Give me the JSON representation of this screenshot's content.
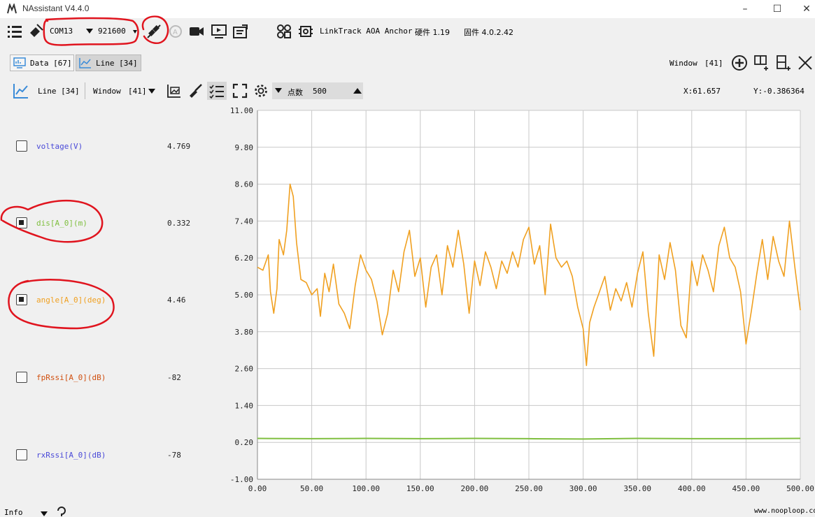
{
  "window": {
    "title": "NAssistant V4.4.0"
  },
  "toolbar": {
    "port": "COM13",
    "baud": "921600",
    "device_info": "LinkTrack AOA Anchor",
    "hardware": "硬件 1.19",
    "firmware": "固件 4.0.2.42"
  },
  "tabs": [
    {
      "label": "Data [67]"
    },
    {
      "label": "Line [34]"
    }
  ],
  "right_controls": {
    "window_label": "Window",
    "window_value": "[41]"
  },
  "line_toolbar": {
    "line_label": "Line [34]",
    "window_label": "Window",
    "window_value": "[41]",
    "points_label": "点数",
    "points_value": "500",
    "x_readout": "X:61.657",
    "y_readout": "Y:-0.386364"
  },
  "series": [
    {
      "name": "voltage(V)",
      "value": "4.769",
      "checked": false,
      "color": "#4a4ad8"
    },
    {
      "name": "dis[A_0](m)",
      "value": "0.332",
      "checked": true,
      "color": "#7fbf3f"
    },
    {
      "name": "angle[A_0](deg)",
      "value": "4.46",
      "checked": true,
      "color": "#f0a020"
    },
    {
      "name": "fpRssi[A_0](dB)",
      "value": "-82",
      "checked": false,
      "color": "#d05010"
    },
    {
      "name": "rxRssi[A_0](dB)",
      "value": "-78",
      "checked": false,
      "color": "#4a4ad8"
    }
  ],
  "statusbar": {
    "level": "Info",
    "website": "www.nooploop.com"
  },
  "chart_data": {
    "type": "line",
    "ylim": [
      -1.0,
      11.0
    ],
    "xlim": [
      0,
      500
    ],
    "yticks": [
      "11.00",
      "9.80",
      "8.60",
      "7.40",
      "6.20",
      "5.00",
      "3.80",
      "2.60",
      "1.40",
      "0.20",
      "-1.00"
    ],
    "xticks": [
      "0.00",
      "50.00",
      "100.00",
      "150.00",
      "200.00",
      "250.00",
      "300.00",
      "350.00",
      "400.00",
      "450.00",
      "500.00"
    ],
    "grid": true,
    "series": [
      {
        "name": "angle[A_0](deg)",
        "color": "#f0a020",
        "x": [
          0,
          5,
          10,
          12,
          15,
          18,
          20,
          24,
          27,
          30,
          33,
          36,
          40,
          45,
          50,
          55,
          58,
          62,
          66,
          70,
          75,
          80,
          85,
          90,
          95,
          100,
          105,
          110,
          115,
          120,
          125,
          130,
          135,
          140,
          145,
          150,
          155,
          160,
          165,
          170,
          175,
          180,
          185,
          190,
          195,
          200,
          205,
          210,
          215,
          220,
          225,
          230,
          235,
          240,
          245,
          250,
          255,
          260,
          265,
          270,
          275,
          280,
          285,
          290,
          295,
          300,
          303,
          306,
          310,
          315,
          320,
          325,
          330,
          335,
          340,
          345,
          350,
          355,
          360,
          365,
          370,
          375,
          380,
          385,
          390,
          395,
          400,
          405,
          410,
          415,
          420,
          425,
          430,
          435,
          440,
          445,
          450,
          455,
          460,
          465,
          470,
          475,
          480,
          485,
          490,
          495,
          500
        ],
        "values": [
          5.9,
          5.8,
          6.3,
          5.1,
          4.4,
          5.2,
          6.8,
          6.3,
          7.1,
          8.6,
          8.2,
          6.7,
          5.5,
          5.4,
          5.0,
          5.2,
          4.3,
          5.7,
          5.1,
          6.0,
          4.7,
          4.4,
          3.9,
          5.3,
          6.3,
          5.8,
          5.5,
          4.8,
          3.7,
          4.4,
          5.8,
          5.1,
          6.4,
          7.1,
          5.6,
          6.2,
          4.6,
          5.9,
          6.3,
          5.0,
          6.6,
          5.9,
          7.1,
          6.0,
          4.4,
          6.1,
          5.3,
          6.4,
          5.9,
          5.2,
          6.1,
          5.7,
          6.4,
          5.9,
          6.8,
          7.2,
          6.0,
          6.6,
          5.0,
          7.3,
          6.2,
          5.9,
          6.1,
          5.6,
          4.6,
          3.9,
          2.7,
          4.1,
          4.6,
          5.1,
          5.6,
          4.5,
          5.2,
          4.8,
          5.4,
          4.6,
          5.7,
          6.4,
          4.4,
          3.0,
          6.3,
          5.5,
          6.7,
          5.8,
          4.0,
          3.6,
          6.1,
          5.3,
          6.3,
          5.8,
          5.1,
          6.6,
          7.2,
          6.2,
          5.9,
          5.1,
          3.4,
          4.5,
          5.7,
          6.8,
          5.5,
          6.9,
          6.1,
          5.6,
          7.4,
          5.9,
          4.5
        ]
      },
      {
        "name": "dis[A_0](m)",
        "color": "#7fbf3f",
        "x": [
          0,
          50,
          100,
          150,
          200,
          250,
          300,
          350,
          400,
          450,
          500
        ],
        "values": [
          0.33,
          0.32,
          0.33,
          0.32,
          0.33,
          0.32,
          0.31,
          0.33,
          0.32,
          0.32,
          0.33
        ]
      }
    ]
  }
}
